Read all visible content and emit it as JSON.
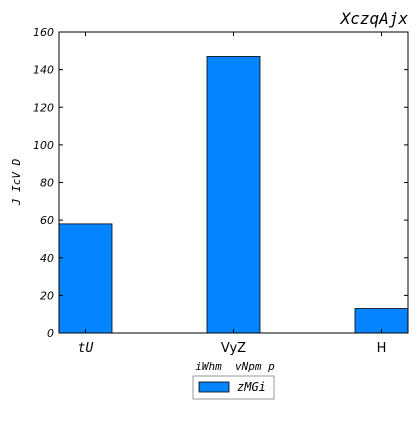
{
  "chart_data": {
    "type": "bar",
    "title": "XczqAjx",
    "xlabel": "iWhm  vNpm p",
    "ylabel": "J IcV D",
    "categories": [
      "tU",
      "VyZ",
      "H"
    ],
    "category_styles": [
      "italic-mono",
      "normal-sans",
      "normal-sans"
    ],
    "series": [
      {
        "name": "zMGi",
        "values": [
          58,
          147,
          13
        ]
      }
    ],
    "ylim": [
      0,
      160
    ],
    "yticks": [
      0,
      20,
      40,
      60,
      80,
      100,
      120,
      140,
      160
    ],
    "grid": false,
    "legend_position": "bottom-center",
    "colors": {
      "bar_fill": "#0485ff",
      "bar_edge": "#000000",
      "axis": "#000000"
    }
  }
}
